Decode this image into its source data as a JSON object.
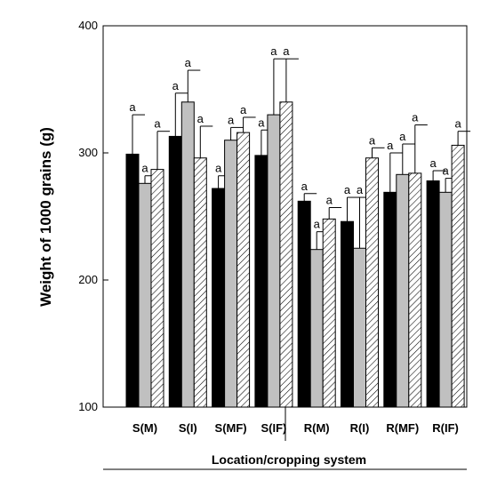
{
  "chart_data": {
    "type": "bar",
    "title": "",
    "xlabel": "Location/cropping system",
    "ylabel": "Weight of 1000 grains (g)",
    "ylim": [
      100,
      400
    ],
    "yticks": [
      100,
      200,
      300,
      400
    ],
    "categories": [
      "S(M)",
      "S(I)",
      "S(MF)",
      "S(IF)",
      "R(M)",
      "R(I)",
      "R(MF)",
      "R(IF)"
    ],
    "series": [
      {
        "fill": "#000000",
        "values": [
          299,
          313,
          272,
          298,
          262,
          246,
          269,
          278
        ],
        "error": [
          31,
          34,
          10,
          20,
          6,
          19,
          31,
          8
        ],
        "sig": [
          "a",
          "a",
          "a",
          "a",
          "a",
          "a",
          "a",
          "a"
        ]
      },
      {
        "fill": "#c0c0c0",
        "values": [
          276,
          340,
          310,
          330,
          224,
          225,
          283,
          269
        ],
        "error": [
          6,
          25,
          10,
          44,
          14,
          40,
          24,
          11
        ],
        "sig": [
          "a",
          "a",
          "a",
          "a",
          "a",
          "a",
          "a",
          "a"
        ]
      },
      {
        "fill": "hatch",
        "values": [
          287,
          296,
          316,
          340,
          248,
          296,
          284,
          306
        ],
        "error": [
          30,
          25,
          12,
          34,
          9,
          8,
          38,
          11
        ],
        "sig": [
          "a",
          "a",
          "a",
          "a",
          "a",
          "a",
          "a",
          "a"
        ]
      }
    ],
    "grid": false,
    "legend": "none"
  }
}
